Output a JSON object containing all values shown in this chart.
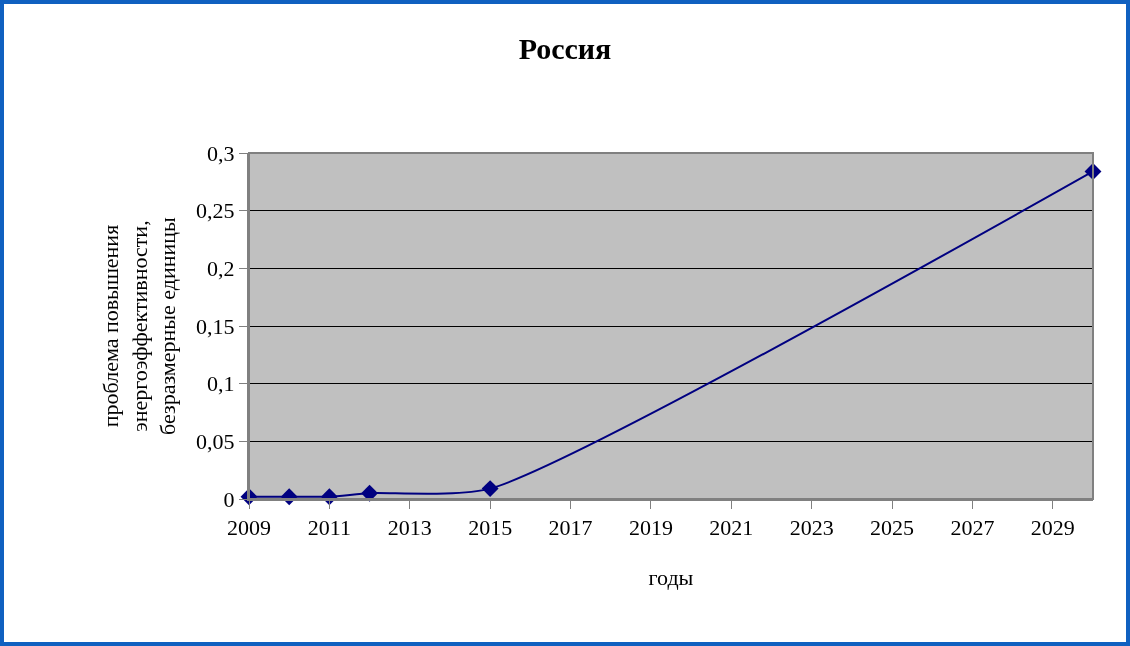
{
  "chart_data": {
    "type": "line",
    "title": "Россия",
    "xlabel": "годы",
    "ylabel": "проблема повышения\nэнергоэффективности,\nбезразмерные единицы",
    "x": [
      2009,
      2010,
      2011,
      2012,
      2015,
      2030
    ],
    "series": [
      {
        "color": "#000080",
        "values": [
          0.002,
          0.002,
          0.002,
          0.005,
          0.009,
          0.284
        ]
      }
    ],
    "xlim": [
      2009,
      2030
    ],
    "xticks": [
      2009,
      2011,
      2013,
      2015,
      2017,
      2019,
      2021,
      2023,
      2025,
      2027,
      2029
    ],
    "ylim": [
      0,
      0.3
    ],
    "yticks": [
      {
        "value": 0,
        "label": "0"
      },
      {
        "value": 0.05,
        "label": "0,05"
      },
      {
        "value": 0.1,
        "label": "0,1"
      },
      {
        "value": 0.15,
        "label": "0,15"
      },
      {
        "value": 0.2,
        "label": "0,2"
      },
      {
        "value": 0.25,
        "label": "0,25"
      },
      {
        "value": 0.3,
        "label": "0,3"
      }
    ],
    "grid": "y",
    "legend": false,
    "marker": "diamond",
    "line_style": "solid"
  }
}
